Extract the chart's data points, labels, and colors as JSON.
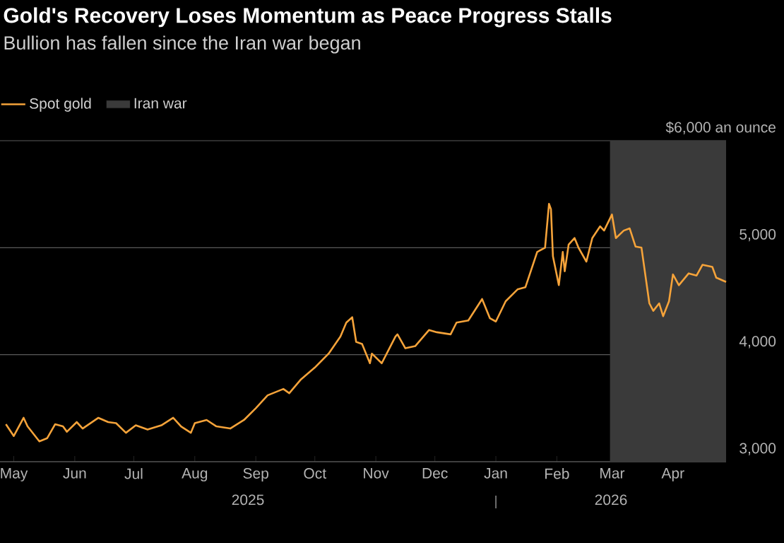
{
  "chart_data": {
    "type": "line",
    "title": "Gold's Recovery Loses Momentum as Peace Progress Stalls",
    "subtitle": "Bullion has fallen since the Iran war began",
    "x": [
      "2025-04-27",
      "2025-05-01",
      "2025-05-06",
      "2025-05-08",
      "2025-05-14",
      "2025-05-18",
      "2025-05-22",
      "2025-05-26",
      "2025-05-28",
      "2025-06-02",
      "2025-06-05",
      "2025-06-13",
      "2025-06-18",
      "2025-06-22",
      "2025-06-27",
      "2025-07-02",
      "2025-07-08",
      "2025-07-15",
      "2025-07-21",
      "2025-07-25",
      "2025-07-30",
      "2025-08-01",
      "2025-08-07",
      "2025-08-12",
      "2025-08-19",
      "2025-08-26",
      "2025-09-01",
      "2025-09-07",
      "2025-09-15",
      "2025-09-18",
      "2025-09-24",
      "2025-10-01",
      "2025-10-08",
      "2025-10-14",
      "2025-10-17",
      "2025-10-20",
      "2025-10-22",
      "2025-10-25",
      "2025-10-29",
      "2025-10-30",
      "2025-11-04",
      "2025-11-11",
      "2025-11-12",
      "2025-11-16",
      "2025-11-21",
      "2025-11-28",
      "2025-12-02",
      "2025-12-09",
      "2025-12-12",
      "2025-12-18",
      "2025-12-25",
      "2025-12-29",
      "2026-01-01",
      "2026-01-06",
      "2026-01-12",
      "2026-01-16",
      "2026-01-22",
      "2026-01-26",
      "2026-01-28",
      "2026-01-29",
      "2026-01-30",
      "2026-02-02",
      "2026-02-04",
      "2026-02-05",
      "2026-02-07",
      "2026-02-10",
      "2026-02-12",
      "2026-02-16",
      "2026-02-19",
      "2026-02-23",
      "2026-02-25",
      "2026-03-01",
      "2026-03-03",
      "2026-03-07",
      "2026-03-10",
      "2026-03-13",
      "2026-03-16",
      "2026-03-20",
      "2026-03-22",
      "2026-03-25",
      "2026-03-27",
      "2026-03-30",
      "2026-04-01",
      "2026-04-04",
      "2026-04-09",
      "2026-04-13",
      "2026-04-16",
      "2026-04-21",
      "2026-04-23",
      "2026-04-28"
    ],
    "series": [
      {
        "name": "Spot gold",
        "color": "#f5a33a",
        "values": [
          3350,
          3240,
          3410,
          3330,
          3190,
          3220,
          3350,
          3330,
          3280,
          3370,
          3310,
          3410,
          3370,
          3360,
          3270,
          3340,
          3300,
          3340,
          3410,
          3330,
          3270,
          3360,
          3390,
          3330,
          3310,
          3390,
          3500,
          3620,
          3680,
          3640,
          3770,
          3880,
          4010,
          4170,
          4300,
          4350,
          4120,
          4100,
          3920,
          4010,
          3920,
          4170,
          4190,
          4060,
          4080,
          4230,
          4210,
          4190,
          4300,
          4320,
          4520,
          4340,
          4310,
          4500,
          4610,
          4630,
          4960,
          5000,
          5410,
          5360,
          4920,
          4650,
          4960,
          4780,
          5030,
          5090,
          5000,
          4870,
          5090,
          5200,
          5160,
          5310,
          5090,
          5160,
          5180,
          5010,
          5000,
          4480,
          4410,
          4480,
          4360,
          4500,
          4750,
          4650,
          4760,
          4740,
          4840,
          4820,
          4720,
          4680
        ]
      }
    ],
    "xlim": [
      "2025-04-24",
      "2026-04-28"
    ],
    "xticks": [
      {
        "value": "2025-05-01",
        "label": "May"
      },
      {
        "value": "2025-06-01",
        "label": "Jun"
      },
      {
        "value": "2025-07-01",
        "label": "Jul"
      },
      {
        "value": "2025-08-01",
        "label": "Aug"
      },
      {
        "value": "2025-09-01",
        "label": "Sep"
      },
      {
        "value": "2025-10-01",
        "label": "Oct"
      },
      {
        "value": "2025-11-01",
        "label": "Nov"
      },
      {
        "value": "2025-12-01",
        "label": "Dec"
      },
      {
        "value": "2026-01-01",
        "label": "Jan"
      },
      {
        "value": "2026-02-01",
        "label": "Feb"
      },
      {
        "value": "2026-03-01",
        "label": "Mar"
      },
      {
        "value": "2026-04-01",
        "label": "Apr"
      }
    ],
    "ylim": [
      3000,
      6000
    ],
    "yticks": [
      {
        "value": 3000,
        "label": "3,000"
      },
      {
        "value": 4000,
        "label": "4,000"
      },
      {
        "value": 5000,
        "label": "5,000"
      },
      {
        "value": 6000,
        "label": "$6,000 an ounce"
      }
    ],
    "bands": [
      {
        "axis": "x",
        "from": "2026-02-28",
        "to": "2026-04-28",
        "label": "Iran war",
        "color": "#3a3a3a"
      }
    ],
    "annotations": [
      "2025",
      "2026"
    ],
    "grid": "y",
    "legend": "top left",
    "marker": "none",
    "line_style": "solid"
  }
}
